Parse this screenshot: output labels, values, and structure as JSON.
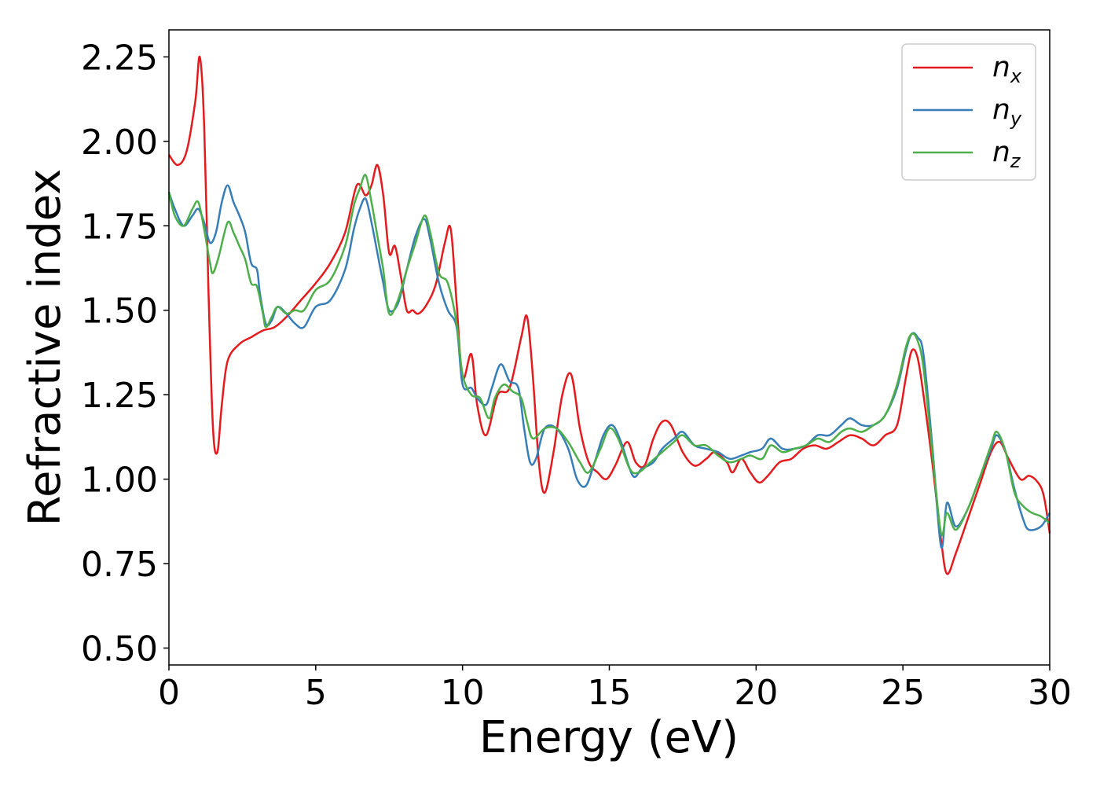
{
  "chart_data": {
    "type": "line",
    "title": "",
    "xlabel": "Energy (eV)",
    "ylabel": "Refractive index",
    "xlim": [
      0,
      30
    ],
    "ylim": [
      0.45,
      2.33
    ],
    "xticks": [
      "0",
      "5",
      "10",
      "15",
      "20",
      "25",
      "30"
    ],
    "yticks": [
      "0.50",
      "0.75",
      "1.00",
      "1.25",
      "1.50",
      "1.75",
      "2.00",
      "2.25"
    ],
    "grid": false,
    "legend_position": "top-right",
    "series": [
      {
        "name": "n_x",
        "label_main": "n",
        "label_sub": "x",
        "color": "#e41a1c",
        "points": [
          [
            0,
            1.96
          ],
          [
            0.3,
            1.93
          ],
          [
            0.6,
            1.97
          ],
          [
            0.9,
            2.12
          ],
          [
            1.05,
            2.25
          ],
          [
            1.2,
            2.05
          ],
          [
            1.35,
            1.55
          ],
          [
            1.5,
            1.15
          ],
          [
            1.65,
            1.08
          ],
          [
            1.8,
            1.22
          ],
          [
            2.0,
            1.35
          ],
          [
            2.4,
            1.4
          ],
          [
            2.8,
            1.42
          ],
          [
            3.2,
            1.44
          ],
          [
            3.6,
            1.45
          ],
          [
            4.0,
            1.48
          ],
          [
            4.5,
            1.53
          ],
          [
            5.0,
            1.58
          ],
          [
            5.5,
            1.64
          ],
          [
            6.0,
            1.73
          ],
          [
            6.4,
            1.87
          ],
          [
            6.7,
            1.84
          ],
          [
            6.9,
            1.87
          ],
          [
            7.1,
            1.93
          ],
          [
            7.3,
            1.84
          ],
          [
            7.5,
            1.67
          ],
          [
            7.7,
            1.69
          ],
          [
            7.9,
            1.6
          ],
          [
            8.1,
            1.5
          ],
          [
            8.3,
            1.5
          ],
          [
            8.5,
            1.49
          ],
          [
            8.8,
            1.52
          ],
          [
            9.1,
            1.58
          ],
          [
            9.4,
            1.7
          ],
          [
            9.6,
            1.74
          ],
          [
            9.8,
            1.52
          ],
          [
            10.0,
            1.3
          ],
          [
            10.3,
            1.37
          ],
          [
            10.5,
            1.22
          ],
          [
            10.8,
            1.13
          ],
          [
            11.2,
            1.25
          ],
          [
            11.6,
            1.27
          ],
          [
            12.0,
            1.42
          ],
          [
            12.2,
            1.48
          ],
          [
            12.4,
            1.3
          ],
          [
            12.6,
            1.05
          ],
          [
            12.8,
            0.96
          ],
          [
            13.1,
            1.08
          ],
          [
            13.4,
            1.25
          ],
          [
            13.7,
            1.31
          ],
          [
            14.0,
            1.15
          ],
          [
            14.3,
            1.05
          ],
          [
            14.6,
            1.02
          ],
          [
            14.9,
            1.0
          ],
          [
            15.2,
            1.04
          ],
          [
            15.6,
            1.11
          ],
          [
            15.9,
            1.05
          ],
          [
            16.2,
            1.04
          ],
          [
            16.5,
            1.12
          ],
          [
            16.8,
            1.17
          ],
          [
            17.1,
            1.16
          ],
          [
            17.5,
            1.08
          ],
          [
            17.9,
            1.04
          ],
          [
            18.3,
            1.06
          ],
          [
            18.6,
            1.08
          ],
          [
            19.0,
            1.05
          ],
          [
            19.2,
            1.02
          ],
          [
            19.5,
            1.06
          ],
          [
            19.8,
            1.02
          ],
          [
            20.1,
            0.99
          ],
          [
            20.4,
            1.01
          ],
          [
            20.8,
            1.05
          ],
          [
            21.2,
            1.06
          ],
          [
            21.6,
            1.09
          ],
          [
            22.0,
            1.1
          ],
          [
            22.4,
            1.09
          ],
          [
            22.8,
            1.11
          ],
          [
            23.2,
            1.13
          ],
          [
            23.6,
            1.12
          ],
          [
            24.0,
            1.1
          ],
          [
            24.4,
            1.13
          ],
          [
            24.8,
            1.16
          ],
          [
            25.1,
            1.3
          ],
          [
            25.3,
            1.38
          ],
          [
            25.5,
            1.36
          ],
          [
            25.7,
            1.25
          ],
          [
            26.0,
            1.05
          ],
          [
            26.3,
            0.82
          ],
          [
            26.5,
            0.72
          ],
          [
            26.8,
            0.78
          ],
          [
            27.2,
            0.88
          ],
          [
            27.6,
            0.98
          ],
          [
            28.0,
            1.08
          ],
          [
            28.3,
            1.11
          ],
          [
            28.6,
            1.06
          ],
          [
            29.0,
            1.0
          ],
          [
            29.3,
            1.01
          ],
          [
            29.6,
            0.99
          ],
          [
            29.8,
            0.95
          ],
          [
            30.0,
            0.84
          ]
        ]
      },
      {
        "name": "n_y",
        "label_main": "n",
        "label_sub": "y",
        "color": "#377eb8",
        "points": [
          [
            0,
            1.85
          ],
          [
            0.2,
            1.8
          ],
          [
            0.5,
            1.75
          ],
          [
            0.8,
            1.78
          ],
          [
            1.0,
            1.8
          ],
          [
            1.2,
            1.76
          ],
          [
            1.4,
            1.7
          ],
          [
            1.6,
            1.73
          ],
          [
            1.8,
            1.82
          ],
          [
            2.0,
            1.87
          ],
          [
            2.2,
            1.82
          ],
          [
            2.4,
            1.78
          ],
          [
            2.6,
            1.73
          ],
          [
            2.8,
            1.64
          ],
          [
            3.0,
            1.62
          ],
          [
            3.1,
            1.55
          ],
          [
            3.3,
            1.46
          ],
          [
            3.5,
            1.47
          ],
          [
            3.7,
            1.51
          ],
          [
            4.0,
            1.49
          ],
          [
            4.3,
            1.46
          ],
          [
            4.6,
            1.45
          ],
          [
            5.0,
            1.51
          ],
          [
            5.5,
            1.53
          ],
          [
            6.0,
            1.62
          ],
          [
            6.3,
            1.74
          ],
          [
            6.5,
            1.8
          ],
          [
            6.7,
            1.83
          ],
          [
            6.9,
            1.76
          ],
          [
            7.1,
            1.67
          ],
          [
            7.3,
            1.58
          ],
          [
            7.5,
            1.5
          ],
          [
            7.8,
            1.52
          ],
          [
            8.1,
            1.62
          ],
          [
            8.4,
            1.72
          ],
          [
            8.7,
            1.77
          ],
          [
            8.9,
            1.71
          ],
          [
            9.2,
            1.58
          ],
          [
            9.5,
            1.5
          ],
          [
            9.8,
            1.45
          ],
          [
            10.0,
            1.28
          ],
          [
            10.3,
            1.27
          ],
          [
            10.5,
            1.24
          ],
          [
            10.8,
            1.22
          ],
          [
            11.0,
            1.27
          ],
          [
            11.3,
            1.34
          ],
          [
            11.6,
            1.29
          ],
          [
            11.9,
            1.27
          ],
          [
            12.1,
            1.15
          ],
          [
            12.3,
            1.05
          ],
          [
            12.5,
            1.06
          ],
          [
            12.8,
            1.15
          ],
          [
            13.2,
            1.15
          ],
          [
            13.6,
            1.09
          ],
          [
            13.9,
            1.0
          ],
          [
            14.2,
            0.98
          ],
          [
            14.5,
            1.05
          ],
          [
            14.8,
            1.13
          ],
          [
            15.1,
            1.16
          ],
          [
            15.4,
            1.11
          ],
          [
            15.8,
            1.01
          ],
          [
            16.1,
            1.03
          ],
          [
            16.5,
            1.05
          ],
          [
            16.8,
            1.09
          ],
          [
            17.2,
            1.12
          ],
          [
            17.5,
            1.14
          ],
          [
            17.9,
            1.1
          ],
          [
            18.3,
            1.09
          ],
          [
            18.7,
            1.08
          ],
          [
            19.1,
            1.06
          ],
          [
            19.5,
            1.07
          ],
          [
            19.8,
            1.08
          ],
          [
            20.2,
            1.09
          ],
          [
            20.5,
            1.12
          ],
          [
            20.9,
            1.09
          ],
          [
            21.3,
            1.09
          ],
          [
            21.7,
            1.1
          ],
          [
            22.1,
            1.13
          ],
          [
            22.5,
            1.13
          ],
          [
            22.9,
            1.16
          ],
          [
            23.2,
            1.18
          ],
          [
            23.6,
            1.16
          ],
          [
            24.0,
            1.16
          ],
          [
            24.4,
            1.19
          ],
          [
            24.8,
            1.27
          ],
          [
            25.1,
            1.38
          ],
          [
            25.3,
            1.43
          ],
          [
            25.5,
            1.42
          ],
          [
            25.7,
            1.37
          ],
          [
            26.0,
            1.1
          ],
          [
            26.3,
            0.8
          ],
          [
            26.5,
            0.93
          ],
          [
            26.8,
            0.86
          ],
          [
            27.2,
            0.91
          ],
          [
            27.6,
            1.0
          ],
          [
            28.0,
            1.09
          ],
          [
            28.2,
            1.13
          ],
          [
            28.5,
            1.08
          ],
          [
            28.8,
            0.97
          ],
          [
            29.1,
            0.88
          ],
          [
            29.3,
            0.85
          ],
          [
            29.7,
            0.86
          ],
          [
            30.0,
            0.9
          ]
        ]
      },
      {
        "name": "n_z",
        "label_main": "n",
        "label_sub": "z",
        "color": "#4daf4a",
        "points": [
          [
            0,
            1.85
          ],
          [
            0.2,
            1.78
          ],
          [
            0.5,
            1.75
          ],
          [
            0.8,
            1.8
          ],
          [
            1.0,
            1.82
          ],
          [
            1.2,
            1.74
          ],
          [
            1.4,
            1.64
          ],
          [
            1.5,
            1.61
          ],
          [
            1.7,
            1.66
          ],
          [
            2.0,
            1.76
          ],
          [
            2.2,
            1.73
          ],
          [
            2.4,
            1.69
          ],
          [
            2.6,
            1.65
          ],
          [
            2.8,
            1.58
          ],
          [
            3.0,
            1.57
          ],
          [
            3.2,
            1.49
          ],
          [
            3.3,
            1.45
          ],
          [
            3.5,
            1.48
          ],
          [
            3.7,
            1.51
          ],
          [
            4.0,
            1.49
          ],
          [
            4.3,
            1.5
          ],
          [
            4.6,
            1.5
          ],
          [
            5.0,
            1.56
          ],
          [
            5.5,
            1.59
          ],
          [
            6.0,
            1.69
          ],
          [
            6.3,
            1.81
          ],
          [
            6.5,
            1.86
          ],
          [
            6.7,
            1.9
          ],
          [
            6.9,
            1.82
          ],
          [
            7.1,
            1.72
          ],
          [
            7.3,
            1.62
          ],
          [
            7.5,
            1.49
          ],
          [
            7.8,
            1.53
          ],
          [
            8.1,
            1.62
          ],
          [
            8.4,
            1.7
          ],
          [
            8.7,
            1.78
          ],
          [
            8.9,
            1.73
          ],
          [
            9.2,
            1.61
          ],
          [
            9.5,
            1.58
          ],
          [
            9.8,
            1.46
          ],
          [
            10.0,
            1.31
          ],
          [
            10.3,
            1.25
          ],
          [
            10.6,
            1.24
          ],
          [
            10.9,
            1.18
          ],
          [
            11.1,
            1.24
          ],
          [
            11.4,
            1.28
          ],
          [
            11.7,
            1.26
          ],
          [
            12.0,
            1.24
          ],
          [
            12.2,
            1.17
          ],
          [
            12.4,
            1.12
          ],
          [
            12.8,
            1.15
          ],
          [
            13.2,
            1.15
          ],
          [
            13.6,
            1.11
          ],
          [
            14.0,
            1.05
          ],
          [
            14.3,
            1.02
          ],
          [
            14.7,
            1.09
          ],
          [
            15.0,
            1.15
          ],
          [
            15.3,
            1.12
          ],
          [
            15.7,
            1.03
          ],
          [
            16.0,
            1.02
          ],
          [
            16.4,
            1.05
          ],
          [
            16.8,
            1.08
          ],
          [
            17.2,
            1.11
          ],
          [
            17.5,
            1.13
          ],
          [
            17.9,
            1.1
          ],
          [
            18.3,
            1.1
          ],
          [
            18.7,
            1.07
          ],
          [
            19.1,
            1.05
          ],
          [
            19.5,
            1.06
          ],
          [
            19.8,
            1.07
          ],
          [
            20.2,
            1.06
          ],
          [
            20.5,
            1.1
          ],
          [
            20.9,
            1.08
          ],
          [
            21.3,
            1.09
          ],
          [
            21.7,
            1.1
          ],
          [
            22.1,
            1.12
          ],
          [
            22.5,
            1.11
          ],
          [
            22.9,
            1.14
          ],
          [
            23.2,
            1.15
          ],
          [
            23.6,
            1.14
          ],
          [
            24.0,
            1.16
          ],
          [
            24.4,
            1.19
          ],
          [
            24.8,
            1.28
          ],
          [
            25.1,
            1.39
          ],
          [
            25.3,
            1.43
          ],
          [
            25.5,
            1.41
          ],
          [
            25.7,
            1.33
          ],
          [
            26.0,
            1.08
          ],
          [
            26.3,
            0.84
          ],
          [
            26.5,
            0.9
          ],
          [
            26.8,
            0.85
          ],
          [
            27.2,
            0.91
          ],
          [
            27.6,
            1.0
          ],
          [
            28.0,
            1.1
          ],
          [
            28.2,
            1.14
          ],
          [
            28.5,
            1.08
          ],
          [
            28.8,
            0.96
          ],
          [
            29.1,
            0.92
          ],
          [
            29.4,
            0.9
          ],
          [
            29.7,
            0.89
          ],
          [
            30.0,
            0.87
          ]
        ]
      }
    ]
  }
}
